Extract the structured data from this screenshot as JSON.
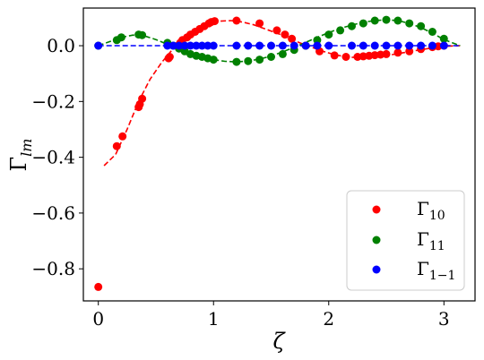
{
  "chart_data": {
    "type": "scatter",
    "xlabel": "ζ",
    "ylabel": "Γ",
    "ylabel_sub": "lm",
    "xlim": [
      -0.13,
      3.27
    ],
    "ylim": [
      -0.915,
      0.135
    ],
    "xticks": [
      0,
      1,
      2,
      3
    ],
    "xtick_labels": [
      "0",
      "1",
      "2",
      "3"
    ],
    "yticks": [
      0.0,
      -0.2,
      -0.4,
      -0.6,
      -0.8
    ],
    "ytick_labels": [
      "0.0",
      "−0.2",
      "−0.4",
      "−0.6",
      "−0.8"
    ],
    "grid": false,
    "legend_position": "bottom-right",
    "series": [
      {
        "name": "Γ",
        "name_sub": "10",
        "color": "#ff0000",
        "x": [
          0.0,
          0.16,
          0.21,
          0.35,
          0.36,
          0.38,
          0.61,
          0.62,
          0.69,
          0.71,
          0.73,
          0.77,
          0.8,
          0.84,
          0.88,
          0.92,
          0.96,
          0.98,
          1.01,
          1.2,
          1.4,
          1.55,
          1.62,
          1.68,
          1.8,
          1.92,
          2.05,
          2.15,
          2.25,
          2.3,
          2.35,
          2.4,
          2.45,
          2.5,
          2.6,
          2.7,
          2.8,
          2.9,
          2.95,
          3.0
        ],
        "y": [
          -0.865,
          -0.36,
          -0.325,
          -0.22,
          -0.21,
          -0.19,
          -0.045,
          -0.04,
          0.0,
          0.01,
          0.02,
          0.03,
          0.04,
          0.05,
          0.06,
          0.07,
          0.08,
          0.085,
          0.088,
          0.09,
          0.08,
          0.055,
          0.04,
          0.025,
          0.0,
          -0.02,
          -0.035,
          -0.04,
          -0.04,
          -0.038,
          -0.036,
          -0.034,
          -0.032,
          -0.03,
          -0.025,
          -0.02,
          -0.012,
          -0.005,
          -0.002,
          0.0
        ]
      },
      {
        "name": "Γ",
        "name_sub": "11",
        "color": "#008000",
        "x": [
          0.0,
          0.16,
          0.2,
          0.35,
          0.38,
          0.6,
          0.65,
          0.7,
          0.75,
          0.8,
          0.85,
          0.9,
          0.95,
          1.0,
          1.2,
          1.3,
          1.4,
          1.5,
          1.6,
          1.7,
          1.8,
          1.9,
          2.0,
          2.1,
          2.2,
          2.3,
          2.4,
          2.5,
          2.6,
          2.7,
          2.8,
          2.9,
          3.0
        ],
        "y": [
          0.0,
          0.02,
          0.03,
          0.04,
          0.038,
          0.01,
          0.0,
          -0.01,
          -0.02,
          -0.03,
          -0.036,
          -0.04,
          -0.045,
          -0.05,
          -0.058,
          -0.055,
          -0.05,
          -0.04,
          -0.03,
          -0.015,
          0.0,
          0.02,
          0.04,
          0.055,
          0.07,
          0.08,
          0.09,
          0.093,
          0.09,
          0.08,
          0.07,
          0.05,
          0.025
        ]
      },
      {
        "name": "Γ",
        "name_sub": "1−1",
        "color": "#0000ff",
        "x": [
          0.0,
          0.6,
          0.65,
          0.7,
          0.75,
          0.8,
          0.85,
          0.9,
          0.95,
          1.0,
          1.2,
          1.3,
          1.4,
          1.5,
          1.6,
          1.7,
          1.8,
          1.9,
          2.0,
          2.2,
          2.3,
          2.4,
          2.5,
          2.6,
          2.7,
          2.8,
          2.9,
          3.0
        ],
        "y": [
          0.0,
          0.0,
          0.0,
          0.0,
          0.0,
          0.0,
          0.0,
          0.0,
          0.0,
          0.0,
          0.0,
          0.0,
          0.0,
          0.0,
          0.0,
          0.0,
          0.0,
          0.0,
          0.0,
          0.0,
          0.0,
          0.0,
          0.0,
          0.0,
          0.0,
          0.0,
          0.0,
          0.0
        ]
      }
    ],
    "fit_curves": [
      {
        "color": "#ff0000",
        "x": [
          0.05,
          0.15,
          0.25,
          0.35,
          0.45,
          0.55,
          0.65,
          0.75,
          0.85,
          0.95,
          1.05,
          1.15,
          1.25,
          1.35,
          1.45,
          1.55,
          1.65,
          1.75,
          1.85,
          1.95,
          2.05,
          2.15,
          2.25,
          2.35,
          2.45,
          2.55,
          2.65,
          2.75,
          2.85,
          2.95,
          3.05,
          3.14
        ],
        "y": [
          -0.43,
          -0.39,
          -0.3,
          -0.2,
          -0.12,
          -0.06,
          -0.01,
          0.03,
          0.06,
          0.08,
          0.088,
          0.09,
          0.085,
          0.075,
          0.06,
          0.045,
          0.028,
          0.01,
          -0.005,
          -0.02,
          -0.032,
          -0.04,
          -0.043,
          -0.042,
          -0.038,
          -0.032,
          -0.025,
          -0.018,
          -0.011,
          -0.005,
          -0.001,
          0.0
        ]
      },
      {
        "color": "#008000",
        "x": [
          0.0,
          0.1,
          0.2,
          0.3,
          0.4,
          0.5,
          0.6,
          0.7,
          0.8,
          0.9,
          1.0,
          1.1,
          1.2,
          1.3,
          1.4,
          1.5,
          1.6,
          1.7,
          1.8,
          1.9,
          2.0,
          2.1,
          2.2,
          2.3,
          2.4,
          2.5,
          2.6,
          2.7,
          2.8,
          2.9,
          3.0,
          3.14
        ],
        "y": [
          0.0,
          0.015,
          0.03,
          0.038,
          0.035,
          0.022,
          0.005,
          -0.012,
          -0.028,
          -0.04,
          -0.05,
          -0.056,
          -0.058,
          -0.055,
          -0.048,
          -0.037,
          -0.022,
          -0.006,
          0.012,
          0.03,
          0.047,
          0.062,
          0.074,
          0.084,
          0.09,
          0.093,
          0.09,
          0.08,
          0.065,
          0.045,
          0.022,
          0.0
        ]
      },
      {
        "color": "#0000ff",
        "x": [
          0.0,
          3.14
        ],
        "y": [
          0.0,
          0.0
        ]
      }
    ]
  }
}
